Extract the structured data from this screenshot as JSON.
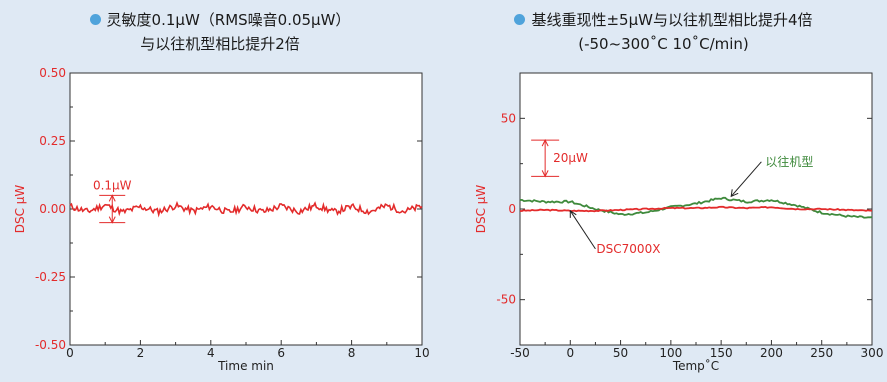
{
  "colors": {
    "background": "#dfe9f4",
    "accent_red": "#e32b2b",
    "series_green": "#3f8a3c",
    "bullet_blue": "#4fa3db",
    "axis_label_red": "#e32b2b"
  },
  "left_chart": {
    "title_line1": "灵敏度0.1μW（RMS噪音0.05μW）",
    "title_line2": "与以往机型相比提升2倍",
    "ylabel": "DSC μW",
    "xlabel": "Time min",
    "yticks": [
      "0.50",
      "0.25",
      "0.00",
      "-0.25",
      "-0.50"
    ],
    "xticks": [
      "0",
      "2",
      "4",
      "6",
      "8",
      "10"
    ],
    "annotation": "0.1μW"
  },
  "right_chart": {
    "title_line1": "基线重现性±5μW与以往机型相比提升4倍",
    "title_line2": "(-50~300˚C  10˚C/min)",
    "ylabel": "DSC μW",
    "xlabel": "Temp˚C",
    "yticks": [
      "50",
      "0",
      "-50"
    ],
    "xticks": [
      "-50",
      "0",
      "50",
      "100",
      "150",
      "200",
      "250",
      "300"
    ],
    "annotation_scale": "20μW",
    "label_previous": "以往机型",
    "label_new": "DSC7000X"
  },
  "chart_data": [
    {
      "type": "line",
      "title": "灵敏度0.1μW（RMS噪音0.05μW） 与以往机型相比提升2倍",
      "xlabel": "Time min",
      "ylabel": "DSC μW",
      "xlim": [
        0,
        10
      ],
      "ylim": [
        -0.5,
        0.5
      ],
      "series": [
        {
          "values": [
            0.01,
            -0.01,
            0.015,
            -0.012,
            0.008,
            -0.01,
            0.012,
            -0.008,
            0.01,
            -0.012,
            0.009,
            -0.01,
            0.011,
            -0.009,
            0.013,
            -0.011,
            0.008,
            -0.01,
            0.012,
            -0.009,
            0.01
          ]
        }
      ],
      "annotations": [
        "0.1μW"
      ]
    },
    {
      "type": "line",
      "title": "基线重现性±5μW与以往机型相比提升4倍 (-50~300˚C 10˚C/min)",
      "xlabel": "Temp˚C",
      "ylabel": "DSC μW",
      "xlim": [
        -50,
        300
      ],
      "ylim": [
        -75,
        75
      ],
      "x": [
        -50,
        -25,
        0,
        25,
        50,
        75,
        100,
        125,
        150,
        175,
        200,
        225,
        250,
        275,
        300
      ],
      "series": [
        {
          "name": "以往机型",
          "values": [
            5,
            4,
            4,
            0,
            -3,
            -2,
            1,
            3,
            6,
            4,
            5,
            2,
            -2,
            -4,
            -5
          ]
        },
        {
          "name": "DSC7000X",
          "values": [
            -1,
            -0.5,
            -1,
            -1,
            -0.5,
            0,
            0.5,
            0.5,
            1,
            0.5,
            1,
            0,
            0,
            -0.5,
            -1
          ]
        }
      ],
      "annotations": [
        "20μW"
      ]
    }
  ]
}
